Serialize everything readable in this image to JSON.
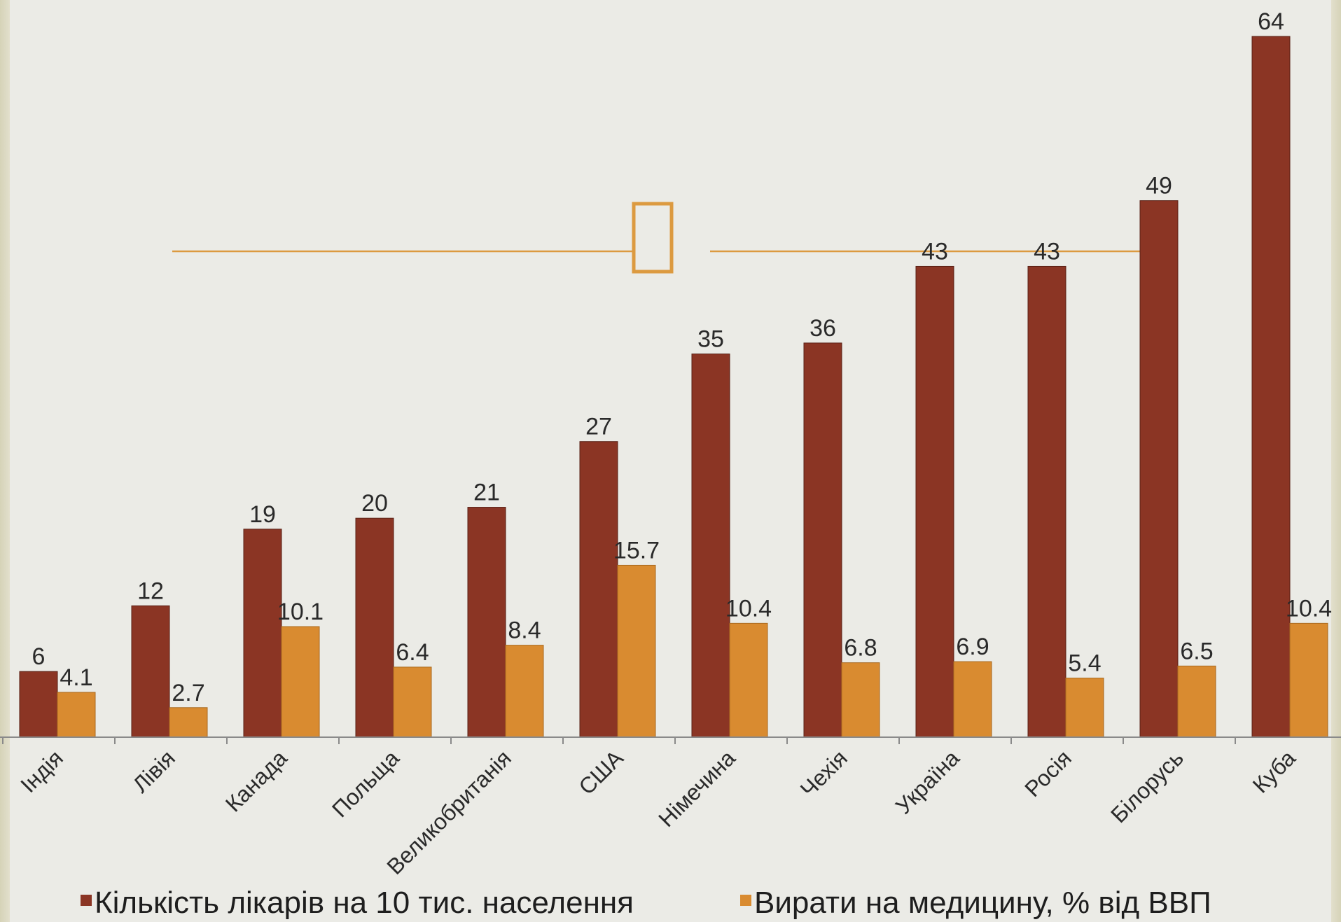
{
  "chart_data": {
    "type": "bar",
    "categories": [
      "Індія",
      "Лівія",
      "Канада",
      "Польща",
      "Великобританія",
      "США",
      "Німечина",
      "Чехія",
      "Україна",
      "Росія",
      "Білорусь",
      "Куба"
    ],
    "series": [
      {
        "name": "Кількість лікарів на 10 тис. населення",
        "values": [
          6,
          12,
          19,
          20,
          21,
          27,
          35,
          36,
          43,
          43,
          49,
          64
        ],
        "labels": [
          "6",
          "12",
          "19",
          "20",
          "21",
          "27",
          "35",
          "36",
          "43",
          "43",
          "49",
          "64"
        ],
        "color": "#8b3524"
      },
      {
        "name": "Вирати на медицину, % від ВВП",
        "values": [
          4.1,
          2.7,
          10.1,
          6.4,
          8.4,
          15.7,
          10.4,
          6.8,
          6.9,
          5.4,
          6.5,
          10.4
        ],
        "labels": [
          "4.1",
          "2.7",
          "10.1",
          "6.4",
          "8.4",
          "15.7",
          "10.4",
          "6.8",
          "6.9",
          "5.4",
          "6.5",
          "10.4"
        ],
        "color": "#d98b30"
      }
    ],
    "ylim": [
      0,
      66
    ],
    "grid": false,
    "legend_position": "bottom",
    "title": "",
    "xlabel": "",
    "ylabel": ""
  },
  "decoration": {
    "accent_color": "#dc9a40",
    "axis_color": "#8a8a8a"
  }
}
